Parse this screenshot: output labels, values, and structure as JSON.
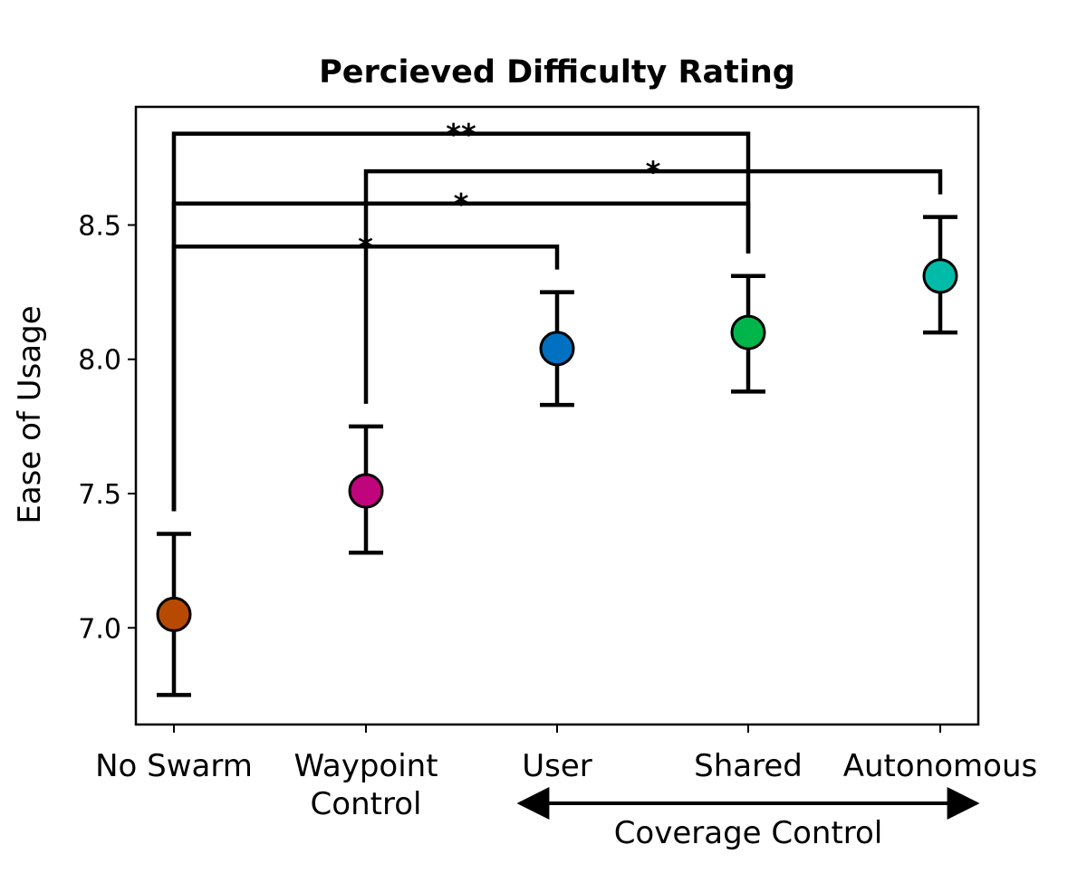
{
  "chart_data": {
    "type": "scatter",
    "title": "Percieved Difficulty Rating",
    "xlabel": "",
    "ylabel": "Ease of Usage",
    "categories": [
      "No Swarm",
      "Waypoint\nControl",
      "User",
      "Shared",
      "Autonomous"
    ],
    "values": [
      7.05,
      7.51,
      8.04,
      8.1,
      8.31
    ],
    "error_low": [
      6.75,
      7.28,
      7.83,
      7.88,
      8.1
    ],
    "error_high": [
      7.35,
      7.75,
      8.25,
      8.31,
      8.53
    ],
    "colors": [
      "#b84a00",
      "#c0047c",
      "#0070c0",
      "#00b64a",
      "#00bba8"
    ],
    "ylim": [
      6.64,
      8.94
    ],
    "yticks": [
      "7.0",
      "7.5",
      "8.0",
      "8.5"
    ],
    "grid": false,
    "group_annotation": {
      "label": "Coverage Control",
      "from": 2,
      "to": 4
    },
    "significance": [
      {
        "from": 0,
        "to": 3,
        "y": 8.84,
        "label": "**"
      },
      {
        "from": 1,
        "to": 4,
        "y": 8.7,
        "label": "*"
      },
      {
        "from": 0,
        "to": 3,
        "y": 8.58,
        "label": "*"
      },
      {
        "from": 0,
        "to": 2,
        "y": 8.42,
        "label": "*"
      }
    ]
  }
}
